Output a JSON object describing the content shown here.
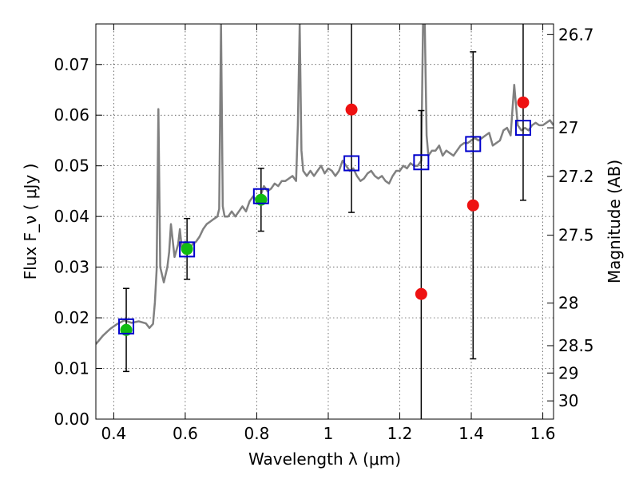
{
  "chart_data": {
    "type": "scatter",
    "xlabel": "Wavelength  λ (μm)",
    "ylabel": "Flux  F_ν  ( μJy )",
    "ylabel_right": "Magnitude (AB)",
    "xlim": [
      0.35,
      1.63
    ],
    "ylim": [
      0.0,
      0.078
    ],
    "grid": true,
    "x_ticks": [
      0.4,
      0.6,
      0.8,
      1.0,
      1.2,
      1.4,
      1.6
    ],
    "x_tick_labels": [
      "0.4",
      "0.6",
      "0.8",
      "1",
      "1.2",
      "1.4",
      "1.6"
    ],
    "y_ticks": [
      0.0,
      0.01,
      0.02,
      0.03,
      0.04,
      0.05,
      0.06,
      0.07
    ],
    "y_tick_labels": [
      "0.00",
      "0.01",
      "0.02",
      "0.03",
      "0.04",
      "0.05",
      "0.06",
      "0.07"
    ],
    "right_ticks": [
      {
        "label": "26.7",
        "flux": 0.0759
      },
      {
        "label": "27",
        "flux": 0.0575
      },
      {
        "label": "27.2",
        "flux": 0.0479
      },
      {
        "label": "27.5",
        "flux": 0.0363
      },
      {
        "label": "28",
        "flux": 0.0229
      },
      {
        "label": "28.5",
        "flux": 0.0145
      },
      {
        "label": "29",
        "flux": 0.0091
      },
      {
        "label": "30",
        "flux": 0.0036
      }
    ],
    "series": [
      {
        "kind": "spectrum",
        "color": "#808080",
        "x": [
          0.35,
          0.37,
          0.39,
          0.41,
          0.43,
          0.45,
          0.47,
          0.49,
          0.5,
          0.51,
          0.515,
          0.52,
          0.525,
          0.53,
          0.54,
          0.55,
          0.555,
          0.56,
          0.57,
          0.58,
          0.585,
          0.59,
          0.6,
          0.61,
          0.62,
          0.63,
          0.64,
          0.65,
          0.66,
          0.67,
          0.68,
          0.69,
          0.695,
          0.7,
          0.705,
          0.71,
          0.72,
          0.73,
          0.74,
          0.75,
          0.76,
          0.77,
          0.78,
          0.79,
          0.8,
          0.81,
          0.82,
          0.83,
          0.84,
          0.85,
          0.86,
          0.87,
          0.88,
          0.89,
          0.9,
          0.91,
          0.915,
          0.92,
          0.925,
          0.93,
          0.94,
          0.95,
          0.96,
          0.97,
          0.98,
          0.99,
          1.0,
          1.01,
          1.02,
          1.03,
          1.04,
          1.05,
          1.06,
          1.07,
          1.08,
          1.09,
          1.1,
          1.11,
          1.12,
          1.13,
          1.14,
          1.15,
          1.16,
          1.17,
          1.18,
          1.19,
          1.2,
          1.21,
          1.22,
          1.23,
          1.24,
          1.25,
          1.26,
          1.265,
          1.27,
          1.275,
          1.28,
          1.29,
          1.3,
          1.31,
          1.32,
          1.33,
          1.34,
          1.35,
          1.36,
          1.37,
          1.38,
          1.39,
          1.4,
          1.41,
          1.42,
          1.43,
          1.44,
          1.45,
          1.46,
          1.47,
          1.48,
          1.49,
          1.5,
          1.51,
          1.52,
          1.53,
          1.54,
          1.55,
          1.56,
          1.57,
          1.58,
          1.59,
          1.6,
          1.61,
          1.62,
          1.63
        ],
        "y": [
          0.0148,
          0.0165,
          0.0178,
          0.0188,
          0.0195,
          0.019,
          0.0193,
          0.0189,
          0.018,
          0.0188,
          0.023,
          0.0295,
          0.0612,
          0.03,
          0.027,
          0.03,
          0.033,
          0.0385,
          0.032,
          0.0345,
          0.0375,
          0.034,
          0.035,
          0.033,
          0.0345,
          0.035,
          0.036,
          0.0375,
          0.0385,
          0.039,
          0.0395,
          0.04,
          0.0415,
          0.078,
          0.042,
          0.04,
          0.04,
          0.041,
          0.04,
          0.041,
          0.042,
          0.041,
          0.043,
          0.044,
          0.043,
          0.044,
          0.046,
          0.045,
          0.0455,
          0.0465,
          0.046,
          0.047,
          0.047,
          0.0475,
          0.048,
          0.047,
          0.058,
          0.078,
          0.053,
          0.049,
          0.048,
          0.049,
          0.048,
          0.049,
          0.05,
          0.0485,
          0.0495,
          0.049,
          0.048,
          0.049,
          0.051,
          0.05,
          0.049,
          0.0495,
          0.048,
          0.047,
          0.0475,
          0.0485,
          0.049,
          0.048,
          0.0475,
          0.048,
          0.047,
          0.0465,
          0.048,
          0.049,
          0.049,
          0.05,
          0.0495,
          0.0505,
          0.05,
          0.05,
          0.051,
          0.078,
          0.078,
          0.056,
          0.052,
          0.053,
          0.053,
          0.054,
          0.052,
          0.053,
          0.0525,
          0.052,
          0.053,
          0.054,
          0.0545,
          0.0545,
          0.055,
          0.0555,
          0.055,
          0.0555,
          0.056,
          0.0565,
          0.054,
          0.0545,
          0.055,
          0.057,
          0.0575,
          0.056,
          0.066,
          0.058,
          0.057,
          0.0575,
          0.057,
          0.058,
          0.0585,
          0.058,
          0.058,
          0.0585,
          0.059,
          0.058
        ]
      },
      {
        "kind": "model",
        "marker": "open-square",
        "color": "#0000cc",
        "x": [
          0.435,
          0.605,
          0.812,
          1.065,
          1.26,
          1.405,
          1.545
        ],
        "y": [
          0.0183,
          0.0335,
          0.044,
          0.0505,
          0.0507,
          0.0543,
          0.0575
        ]
      },
      {
        "kind": "detected",
        "marker": "filled-circle",
        "color": "#11bb11",
        "x": [
          0.435,
          0.605,
          0.812
        ],
        "y": [
          0.0176,
          0.0336,
          0.0433
        ],
        "err": [
          0.0082,
          0.006,
          0.0062
        ]
      },
      {
        "kind": "undetected",
        "marker": "filled-circle",
        "color": "#ee1111",
        "x": [
          1.065,
          1.26,
          1.405,
          1.545
        ],
        "y": [
          0.0611,
          0.0247,
          0.0422,
          0.0625
        ],
        "err": [
          0.0203,
          0.0362,
          0.0303,
          0.0193
        ]
      }
    ]
  }
}
